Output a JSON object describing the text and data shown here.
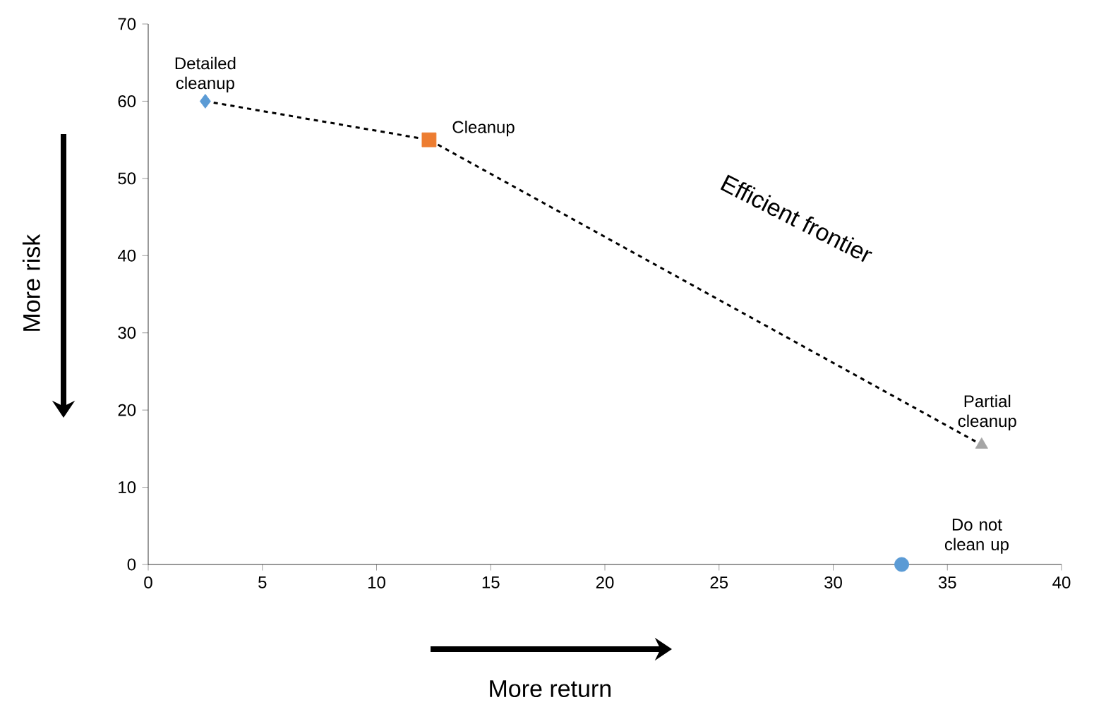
{
  "chart_data": {
    "type": "scatter",
    "xlabel": "More return",
    "ylabel": "More risk",
    "xlim": [
      0,
      40
    ],
    "ylim": [
      0,
      70
    ],
    "xticks": [
      0,
      5,
      10,
      15,
      20,
      25,
      30,
      35,
      40
    ],
    "yticks": [
      0,
      10,
      20,
      30,
      40,
      50,
      60,
      70
    ],
    "series": [
      {
        "type": "line",
        "color": "#000000",
        "line_style": "dashed",
        "marker": "none",
        "x": [
          2.5,
          12.3,
          36.5
        ],
        "values": [
          60,
          55,
          15.5
        ]
      },
      {
        "name": "Detailed cleanup",
        "color": "#5b9bd5",
        "marker": "diamond",
        "x": [
          2.5
        ],
        "values": [
          60
        ]
      },
      {
        "name": "Cleanup",
        "color": "#ed7d31",
        "marker": "square",
        "x": [
          12.3
        ],
        "values": [
          55
        ]
      },
      {
        "name": "Partial cleanup",
        "color": "#a5a5a5",
        "marker": "triangle",
        "x": [
          36.5
        ],
        "values": [
          15.5
        ]
      },
      {
        "name": "Do not clean up",
        "color": "#5b9bd5",
        "marker": "circle",
        "x": [
          33
        ],
        "values": [
          0
        ]
      }
    ],
    "annotations": [
      "Efficient frontier"
    ]
  }
}
